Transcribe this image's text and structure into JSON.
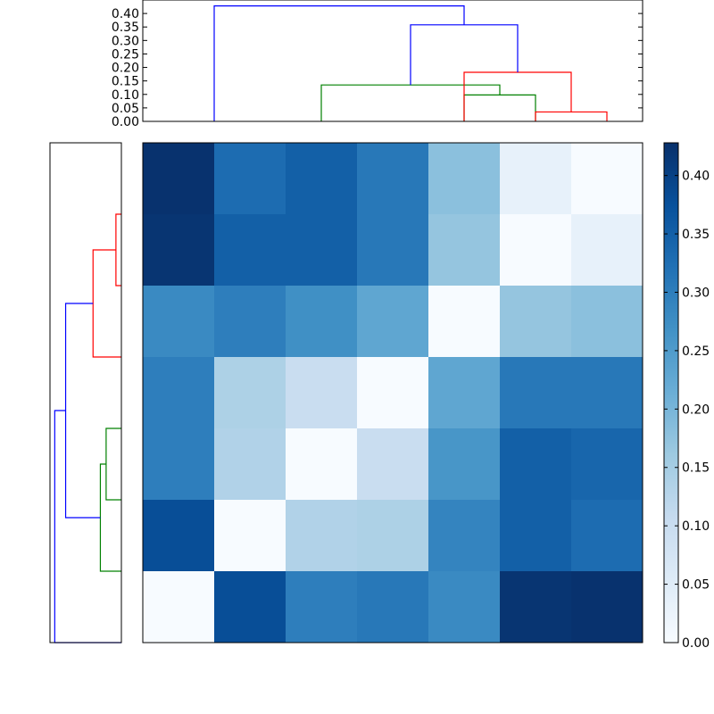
{
  "chart_data": [
    {
      "type": "dendrogram",
      "orientation": "top",
      "yticks": [
        "0.00",
        "0.05",
        "0.10",
        "0.15",
        "0.20",
        "0.25",
        "0.30",
        "0.35",
        "0.40"
      ],
      "ylim": [
        0,
        0.45
      ],
      "leaf_count": 7,
      "links": [
        {
          "left": 4,
          "right": 5,
          "height": 0.098,
          "color": "#008000"
        },
        {
          "left": 2,
          "right": 4.5,
          "height": 0.135,
          "color": "#008000"
        },
        {
          "left": 5,
          "right": 6,
          "height": 0.035,
          "color": "#ff0000"
        },
        {
          "left": 4,
          "right": 5.5,
          "height": 0.182,
          "color": "#ff0000"
        },
        {
          "left": 3.25,
          "right": 4.75,
          "height": 0.358,
          "color": "#0000ff"
        },
        {
          "left": 0.5,
          "right": 4,
          "height": 0.428,
          "color": "#0000ff"
        }
      ]
    },
    {
      "type": "dendrogram",
      "orientation": "left",
      "leaf_count": 7,
      "links": [
        {
          "left": 0.5,
          "right": 1.5,
          "height": 0.035,
          "color": "#ff0000"
        },
        {
          "left": 1,
          "right": 2.5,
          "height": 0.182,
          "color": "#ff0000"
        },
        {
          "left": 3.5,
          "right": 4.5,
          "height": 0.098,
          "color": "#008000"
        },
        {
          "left": 4,
          "right": 5.5,
          "height": 0.135,
          "color": "#008000"
        },
        {
          "left": 1.75,
          "right": 4.75,
          "height": 0.358,
          "color": "#0000ff"
        },
        {
          "left": 3.25,
          "right": 6.5,
          "height": 0.428,
          "color": "#0000ff"
        }
      ]
    },
    {
      "type": "heatmap",
      "colormap": "Blues",
      "vmin": 0,
      "vmax": 0.428,
      "values": [
        [
          0.425,
          0.33,
          0.35,
          0.31,
          0.18,
          0.035,
          0.0
        ],
        [
          0.42,
          0.35,
          0.35,
          0.31,
          0.17,
          0.0,
          0.035
        ],
        [
          0.28,
          0.3,
          0.27,
          0.23,
          0.0,
          0.17,
          0.18
        ],
        [
          0.3,
          0.14,
          0.1,
          0.0,
          0.23,
          0.31,
          0.31
        ],
        [
          0.3,
          0.135,
          0.0,
          0.1,
          0.26,
          0.35,
          0.34
        ],
        [
          0.38,
          0.0,
          0.135,
          0.14,
          0.29,
          0.35,
          0.33
        ],
        [
          0.0,
          0.38,
          0.3,
          0.31,
          0.28,
          0.42,
          0.425
        ]
      ]
    },
    {
      "type": "colorbar",
      "ticks": [
        "0.00",
        "0.05",
        "0.10",
        "0.15",
        "0.20",
        "0.25",
        "0.30",
        "0.35",
        "0.40"
      ],
      "vmin": 0,
      "vmax": 0.428
    }
  ]
}
